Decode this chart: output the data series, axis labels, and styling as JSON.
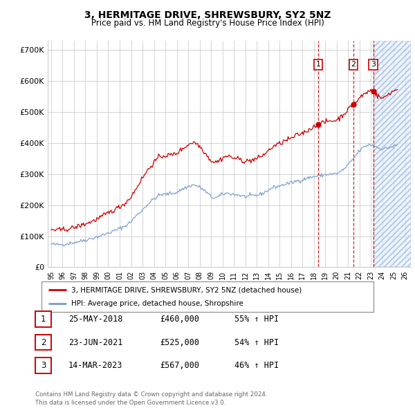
{
  "title": "3, HERMITAGE DRIVE, SHREWSBURY, SY2 5NZ",
  "subtitle": "Price paid vs. HM Land Registry's House Price Index (HPI)",
  "ylim": [
    0,
    730000
  ],
  "yticks": [
    0,
    100000,
    200000,
    300000,
    400000,
    500000,
    600000,
    700000
  ],
  "ytick_labels": [
    "£0",
    "£100K",
    "£200K",
    "£300K",
    "£400K",
    "£500K",
    "£600K",
    "£700K"
  ],
  "xlim_start": 1994.7,
  "xlim_end": 2026.5,
  "background_color": "#ffffff",
  "grid_color": "#cccccc",
  "sale_color": "#cc0000",
  "hpi_color": "#7799cc",
  "transactions": [
    {
      "id": 1,
      "date": "25-MAY-2018",
      "price": 460000,
      "pct": "55%",
      "x": 2018.38
    },
    {
      "id": 2,
      "date": "23-JUN-2021",
      "price": 525000,
      "pct": "54%",
      "x": 2021.47
    },
    {
      "id": 3,
      "date": "14-MAR-2023",
      "price": 567000,
      "pct": "46%",
      "x": 2023.2
    }
  ],
  "legend_label_sale": "3, HERMITAGE DRIVE, SHREWSBURY, SY2 5NZ (detached house)",
  "legend_label_hpi": "HPI: Average price, detached house, Shropshire",
  "footer": "Contains HM Land Registry data © Crown copyright and database right 2024.\nThis data is licensed under the Open Government Licence v3.0."
}
